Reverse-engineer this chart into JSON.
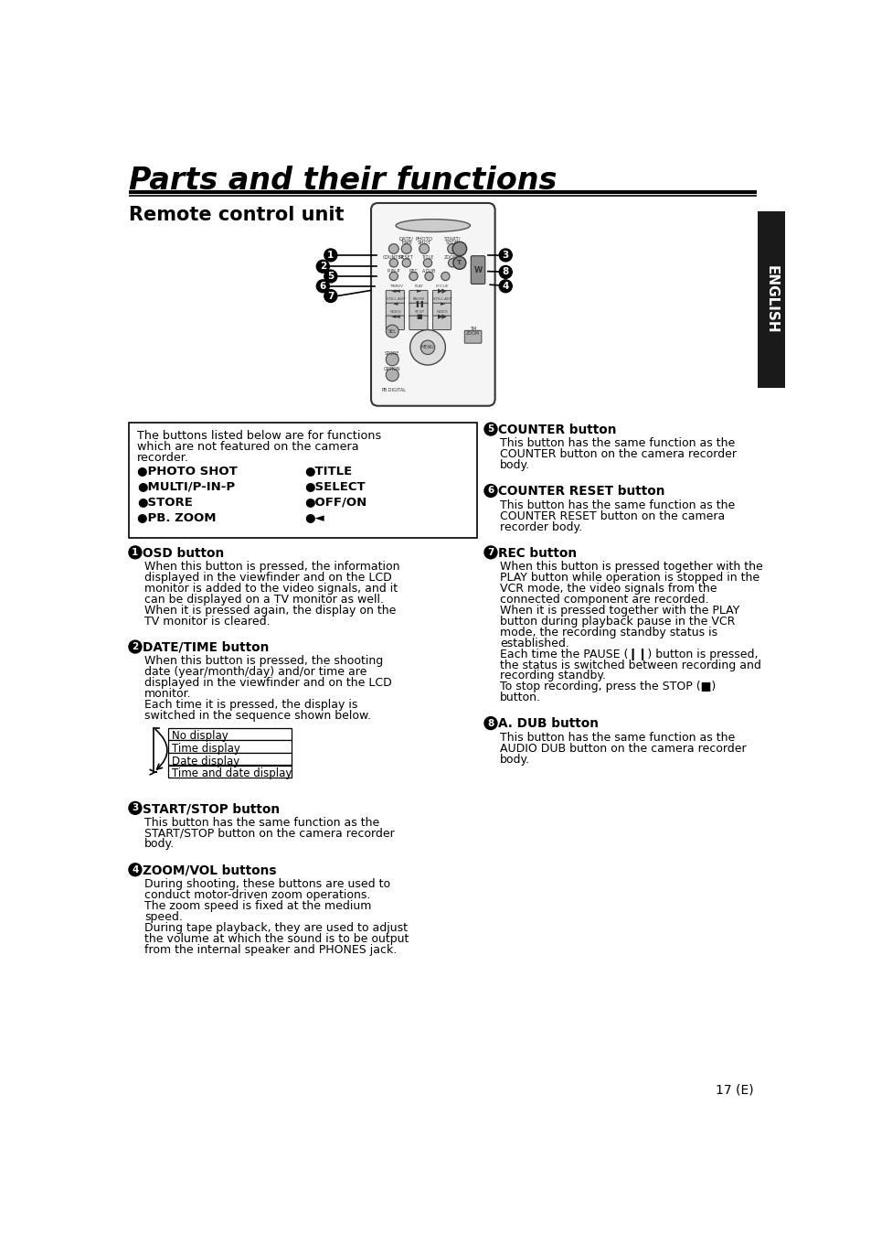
{
  "title": "Parts and their functions",
  "section_title": "Remote control unit",
  "bg_color": "#ffffff",
  "text_color": "#000000",
  "sidebar_color": "#1a1a1a",
  "sidebar_text": "ENGLISH",
  "page_number": "17 (E)",
  "left_sections": [
    {
      "number": "1",
      "heading": "OSD button",
      "body": [
        "When this button is pressed, the information",
        "displayed in the viewfinder and on the LCD",
        "monitor is added to the video signals, and it",
        "can be displayed on a TV monitor as well.",
        "When it is pressed again, the display on the",
        "TV monitor is cleared."
      ]
    },
    {
      "number": "2",
      "heading": "DATE/TIME button",
      "body": [
        "When this button is pressed, the shooting",
        "date (year/month/day) and/or time are",
        "displayed in the viewfinder and on the LCD",
        "monitor.",
        "Each time it is pressed, the display is",
        "switched in the sequence shown below."
      ],
      "has_diagram": true,
      "diagram_lines": [
        "No display",
        "Time display",
        "Date display",
        "Time and date display"
      ]
    },
    {
      "number": "3",
      "heading": "START/STOP button",
      "body": [
        "This button has the same function as the",
        "START/STOP button on the camera recorder",
        "body."
      ]
    },
    {
      "number": "4",
      "heading": "ZOOM/VOL buttons",
      "body": [
        "During shooting, these buttons are used to",
        "conduct motor-driven zoom operations.",
        "The zoom speed is fixed at the medium",
        "speed.",
        "During tape playback, they are used to adjust",
        "the volume at which the sound is to be output",
        "from the internal speaker and PHONES jack."
      ]
    }
  ],
  "right_sections": [
    {
      "number": "5",
      "heading": "COUNTER button",
      "body": [
        "This button has the same function as the",
        "COUNTER button on the camera recorder",
        "body."
      ]
    },
    {
      "number": "6",
      "heading": "COUNTER RESET button",
      "body": [
        "This button has the same function as the",
        "COUNTER RESET button on the camera",
        "recorder body."
      ]
    },
    {
      "number": "7",
      "heading": "REC button",
      "body": [
        "When this button is pressed together with the",
        "PLAY button while operation is stopped in the",
        "VCR mode, the video signals from the",
        "connected component are recorded.",
        "When it is pressed together with the PLAY",
        "button during playback pause in the VCR",
        "mode, the recording standby status is",
        "established.",
        "Each time the PAUSE (❙❙) button is pressed,",
        "the status is switched between recording and",
        "recording standby.",
        "To stop recording, press the STOP (■)",
        "button."
      ]
    },
    {
      "number": "8",
      "heading": "A. DUB button",
      "body": [
        "This button has the same function as the",
        "AUDIO DUB button on the camera recorder",
        "body."
      ]
    }
  ]
}
